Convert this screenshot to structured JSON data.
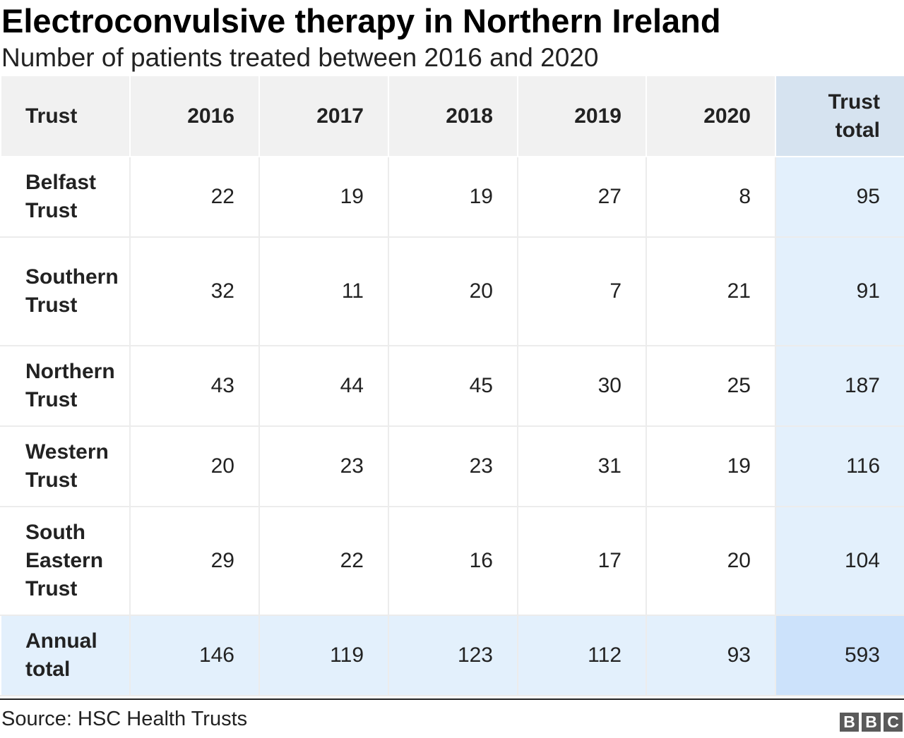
{
  "chart_data": {
    "type": "table",
    "title": "Electroconvulsive therapy in Northern Ireland",
    "subtitle": "Number of patients treated between 2016 and 2020",
    "columns": [
      "Trust",
      "2016",
      "2017",
      "2018",
      "2019",
      "2020",
      "Trust total"
    ],
    "rows": [
      {
        "label": "Belfast Trust",
        "values": [
          "22",
          "19",
          "19",
          "27",
          "8",
          "95"
        ]
      },
      {
        "label": "Southern Trust",
        "values": [
          "32",
          "11",
          "20",
          "7",
          "21",
          "91"
        ]
      },
      {
        "label": "Northern Trust",
        "values": [
          "43",
          "44",
          "45",
          "30",
          "25",
          "187"
        ]
      },
      {
        "label": "Western Trust",
        "values": [
          "20",
          "23",
          "23",
          "31",
          "19",
          "116"
        ]
      },
      {
        "label": "South Eastern Trust",
        "values": [
          "29",
          "22",
          "16",
          "17",
          "20",
          "104"
        ]
      },
      {
        "label": "Annual total",
        "values": [
          "146",
          "119",
          "123",
          "112",
          "93",
          "593"
        ]
      }
    ],
    "source": "Source: HSC Health Trusts"
  },
  "colors": {
    "header_bg": "#f1f1f1",
    "total_col_header_bg": "#d6e3f0",
    "total_bg": "#e3f0fc",
    "grand_total_bg": "#cce2fb"
  },
  "logo": {
    "letters": [
      "B",
      "B",
      "C"
    ]
  }
}
